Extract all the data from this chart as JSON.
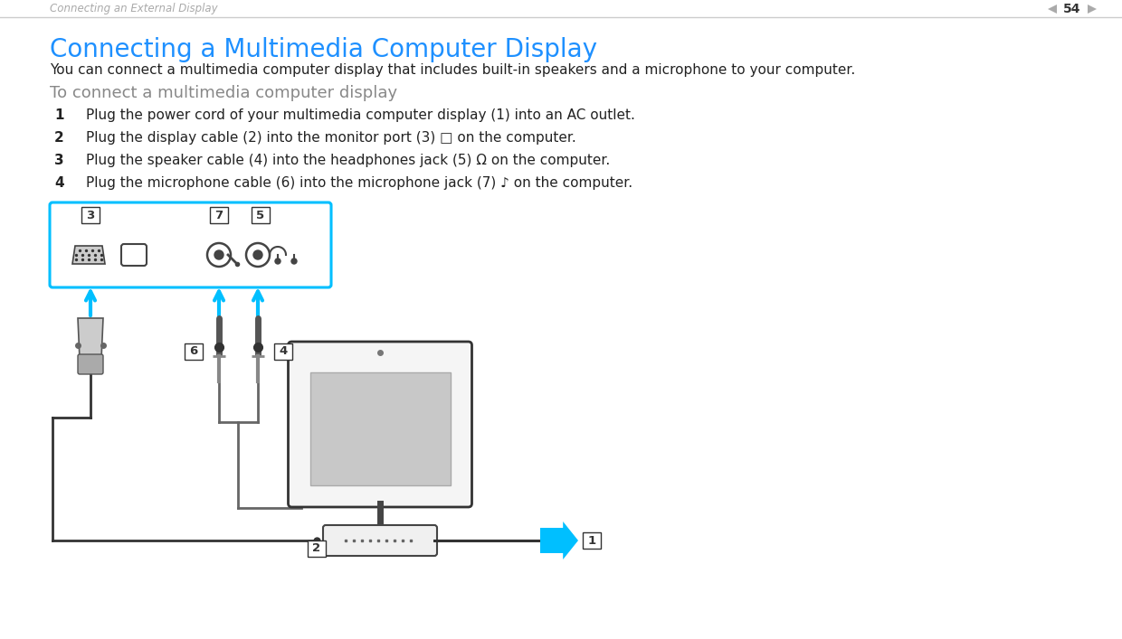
{
  "bg_color": "#ffffff",
  "header_text": "Connecting an External Display",
  "page_num": "54",
  "header_color": "#aaaaaa",
  "title": "Connecting a Multimedia Computer Display",
  "title_color": "#1E90FF",
  "title_fontsize": 20,
  "body_text": "You can connect a multimedia computer display that includes built-in speakers and a microphone to your computer.",
  "body_fontsize": 11,
  "subheading": "To connect a multimedia computer display",
  "subheading_color": "#888888",
  "subheading_fontsize": 13,
  "steps": [
    "Plug the power cord of your multimedia computer display (1) into an AC outlet.",
    "Plug the display cable (2) into the monitor port (3) □ on the computer.",
    "Plug the speaker cable (4) into the headphones jack (5) Ω on the computer.",
    "Plug the microphone cable (6) into the microphone jack (7) ♪ on the computer."
  ],
  "step_fontsize": 11,
  "connector_box_color": "#00BFFF",
  "arrow_color": "#00BFFF",
  "line_color": "#333333"
}
